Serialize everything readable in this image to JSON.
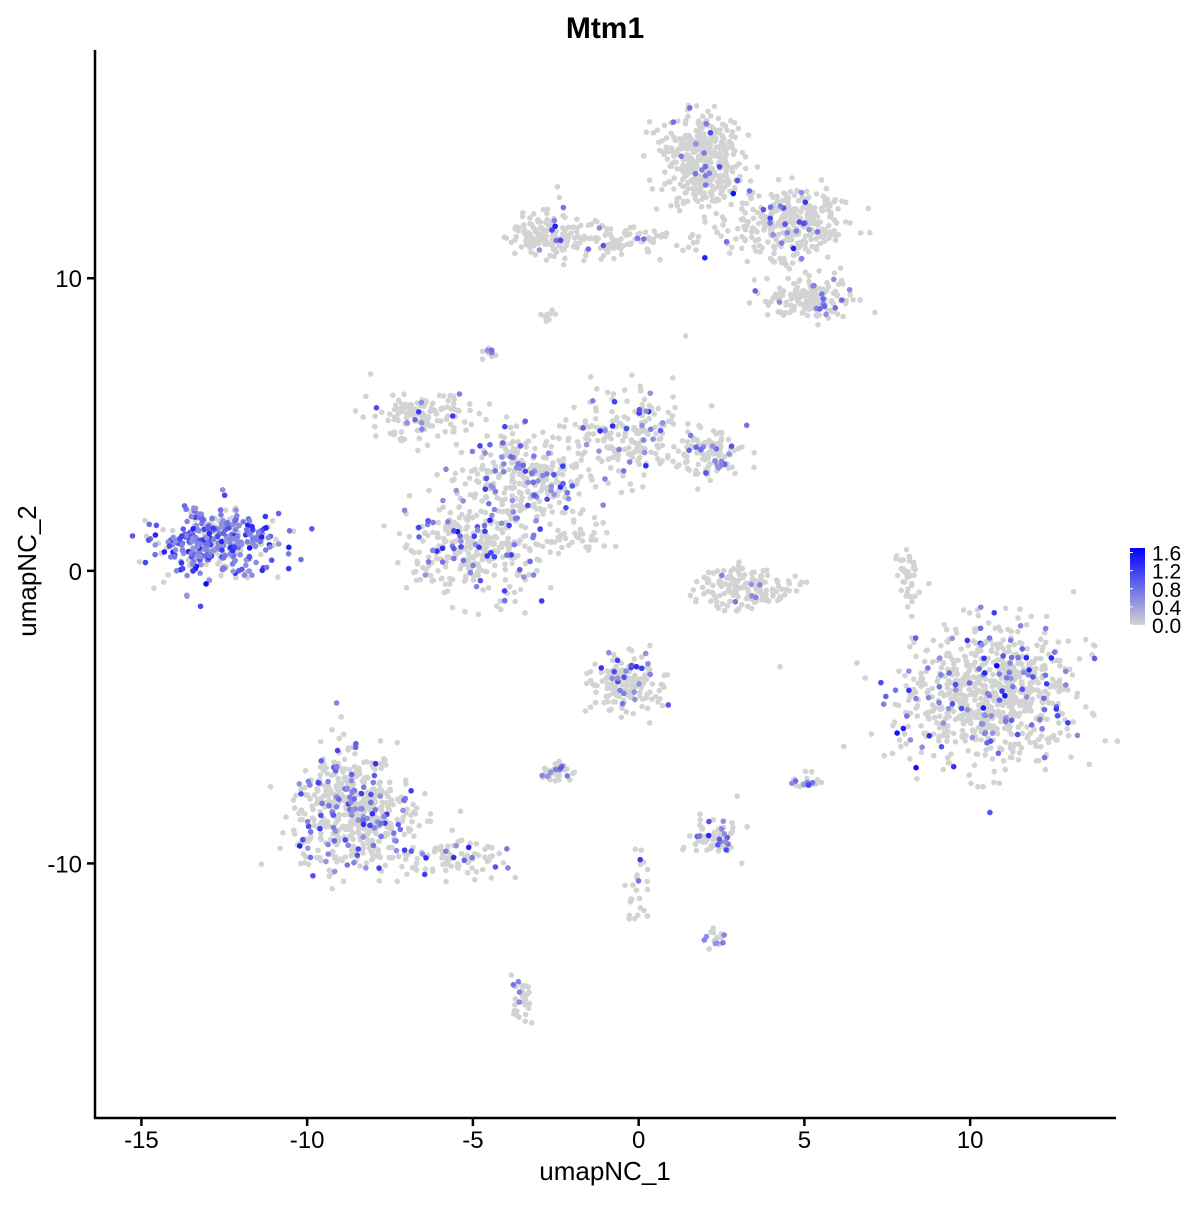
{
  "chart_data": {
    "type": "scatter",
    "title": "Mtm1",
    "xlabel": "umapNC_1",
    "ylabel": "umapNC_2",
    "xlim": [
      -16.4,
      14.4
    ],
    "ylim": [
      -18.7,
      17.8
    ],
    "xticks": [
      -15,
      -10,
      -5,
      0,
      5,
      10
    ],
    "yticks": [
      -10,
      0,
      10
    ],
    "grid": false,
    "legend": {
      "placement": "right",
      "ticks": [
        "0.0",
        "0.4",
        "0.8",
        "1.2",
        "1.6"
      ],
      "range": [
        0,
        1.7
      ],
      "low_color": "#D3D3D3",
      "high_color": "#0000FF"
    },
    "clusters": [
      {
        "cx": -12.7,
        "cy": 1.0,
        "sx": 0.9,
        "sy": 0.55,
        "n": 420,
        "expr_frac": 0.65
      },
      {
        "cx": 1.9,
        "cy": 14.0,
        "sx": 0.6,
        "sy": 0.8,
        "n": 420,
        "expr_frac": 0.05
      },
      {
        "cx": 4.6,
        "cy": 11.8,
        "sx": 0.8,
        "sy": 0.6,
        "n": 320,
        "expr_frac": 0.06
      },
      {
        "cx": 5.2,
        "cy": 9.3,
        "sx": 0.7,
        "sy": 0.35,
        "n": 150,
        "expr_frac": 0.06
      },
      {
        "cx": -1.0,
        "cy": 11.3,
        "sx": 1.6,
        "sy": 0.3,
        "n": 150,
        "expr_frac": 0.05
      },
      {
        "cx": -2.8,
        "cy": 11.6,
        "sx": 0.4,
        "sy": 0.4,
        "n": 90,
        "expr_frac": 0.05
      },
      {
        "cx": -6.5,
        "cy": 5.3,
        "sx": 0.8,
        "sy": 0.4,
        "n": 130,
        "expr_frac": 0.08
      },
      {
        "cx": -3.5,
        "cy": 3.2,
        "sx": 1.0,
        "sy": 0.8,
        "n": 320,
        "expr_frac": 0.2
      },
      {
        "cx": -4.9,
        "cy": 0.8,
        "sx": 1.0,
        "sy": 0.8,
        "n": 330,
        "expr_frac": 0.18
      },
      {
        "cx": -0.3,
        "cy": 4.6,
        "sx": 0.9,
        "sy": 0.8,
        "n": 200,
        "expr_frac": 0.12
      },
      {
        "cx": 2.1,
        "cy": 4.0,
        "sx": 0.6,
        "sy": 0.4,
        "n": 110,
        "expr_frac": 0.12
      },
      {
        "cx": 3.2,
        "cy": -0.6,
        "sx": 0.7,
        "sy": 0.35,
        "n": 150,
        "expr_frac": 0.06
      },
      {
        "cx": 10.5,
        "cy": -4.2,
        "sx": 1.3,
        "sy": 1.2,
        "n": 800,
        "expr_frac": 0.12
      },
      {
        "cx": -8.6,
        "cy": -8.3,
        "sx": 0.9,
        "sy": 1.0,
        "n": 560,
        "expr_frac": 0.18
      },
      {
        "cx": -5.5,
        "cy": -9.8,
        "sx": 0.9,
        "sy": 0.3,
        "n": 90,
        "expr_frac": 0.1
      },
      {
        "cx": -0.4,
        "cy": -3.8,
        "sx": 0.5,
        "sy": 0.5,
        "n": 160,
        "expr_frac": 0.15
      },
      {
        "cx": 2.3,
        "cy": -9.2,
        "sx": 0.35,
        "sy": 0.35,
        "n": 70,
        "expr_frac": 0.25
      },
      {
        "cx": -2.5,
        "cy": -6.9,
        "sx": 0.25,
        "sy": 0.2,
        "n": 35,
        "expr_frac": 0.25
      },
      {
        "cx": 5.0,
        "cy": -7.2,
        "sx": 0.2,
        "sy": 0.15,
        "n": 20,
        "expr_frac": 0.3
      },
      {
        "cx": 8.1,
        "cy": -0.3,
        "sx": 0.15,
        "sy": 0.6,
        "n": 40,
        "expr_frac": 0.0
      },
      {
        "cx": -3.5,
        "cy": -14.8,
        "sx": 0.15,
        "sy": 0.5,
        "n": 35,
        "expr_frac": 0.2
      },
      {
        "cx": 0.0,
        "cy": -11.0,
        "sx": 0.2,
        "sy": 0.6,
        "n": 25,
        "expr_frac": 0.1
      },
      {
        "cx": 2.3,
        "cy": -12.6,
        "sx": 0.2,
        "sy": 0.15,
        "n": 15,
        "expr_frac": 0.3
      },
      {
        "cx": -4.5,
        "cy": 7.4,
        "sx": 0.1,
        "sy": 0.15,
        "n": 12,
        "expr_frac": 0.4
      },
      {
        "cx": -2.7,
        "cy": 8.7,
        "sx": 0.15,
        "sy": 0.1,
        "n": 10,
        "expr_frac": 0.0
      },
      {
        "cx": -1.8,
        "cy": 1.2,
        "sx": 0.5,
        "sy": 0.35,
        "n": 30,
        "expr_frac": 0.05
      }
    ]
  }
}
